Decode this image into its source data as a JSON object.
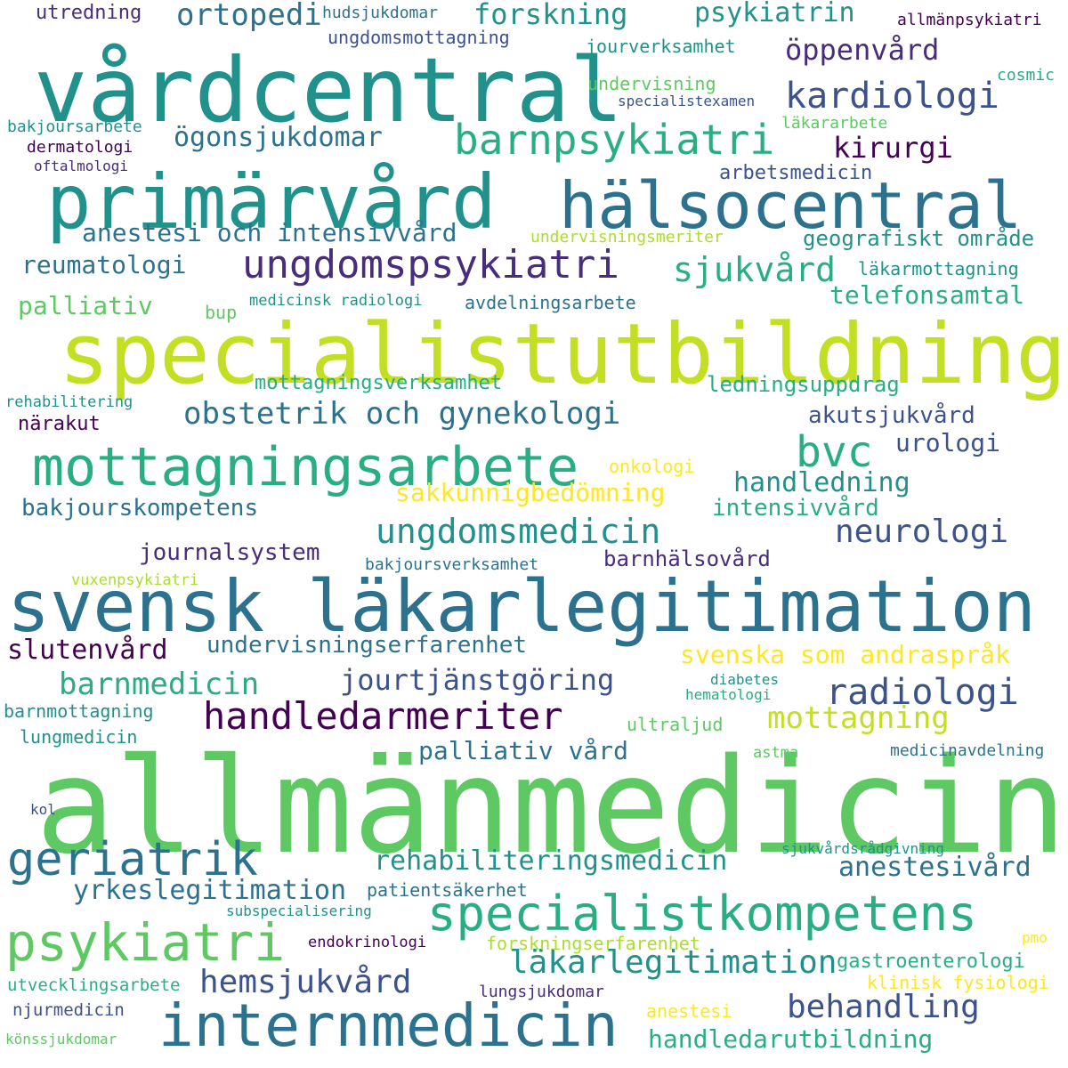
{
  "colors": {
    "background": "#ffffff",
    "palette": [
      "#440154",
      "#472d7b",
      "#3b528b",
      "#2c728e",
      "#21918c",
      "#28ae80",
      "#5ec962",
      "#addc30",
      "#fde725"
    ]
  },
  "words": [
    {
      "text": "allmänmedicin",
      "color": "#5ec962"
    },
    {
      "text": "specialistutbildning",
      "color": "#c2df23"
    },
    {
      "text": "svensk läkarlegitimation",
      "color": "#2c728e"
    },
    {
      "text": "vårdcentral",
      "color": "#21918c"
    },
    {
      "text": "primärvård",
      "color": "#21918c"
    },
    {
      "text": "hälsocentral",
      "color": "#2c728e"
    },
    {
      "text": "mottagningsarbete",
      "color": "#28ae80"
    },
    {
      "text": "specialistkompetens",
      "color": "#28ae80"
    },
    {
      "text": "internmedicin",
      "color": "#2c728e"
    },
    {
      "text": "psykiatri",
      "color": "#5ec962"
    },
    {
      "text": "geriatrik",
      "color": "#2c728e"
    },
    {
      "text": "barnpsykiatri",
      "color": "#28ae80"
    },
    {
      "text": "ungdomspsykiatri",
      "color": "#472d7b"
    },
    {
      "text": "handledarmeriter",
      "color": "#440154"
    },
    {
      "text": "bvc",
      "color": "#28ae80"
    },
    {
      "text": "kardiologi",
      "color": "#3b528b"
    },
    {
      "text": "radiologi",
      "color": "#3b528b"
    },
    {
      "text": "neurologi",
      "color": "#3b528b"
    },
    {
      "text": "ungdomsmedicin",
      "color": "#21918c"
    },
    {
      "text": "barnmedicin",
      "color": "#28ae80"
    },
    {
      "text": "behandling",
      "color": "#3b528b"
    },
    {
      "text": "mottagning",
      "color": "#c2df23"
    },
    {
      "text": "läkarlegitimation",
      "color": "#21918c"
    },
    {
      "text": "sjukvård",
      "color": "#28ae80"
    },
    {
      "text": "hemsjukvård",
      "color": "#3b528b"
    },
    {
      "text": "obstetrik och gynekologi",
      "color": "#2c728e"
    },
    {
      "text": "rehabiliteringsmedicin",
      "color": "#21918c"
    },
    {
      "text": "yrkeslegitimation",
      "color": "#2c728e"
    },
    {
      "text": "jourtjänstgöring",
      "color": "#3b528b"
    },
    {
      "text": "slutenvård",
      "color": "#440154"
    },
    {
      "text": "ortopedi",
      "color": "#2c728e"
    },
    {
      "text": "forskning",
      "color": "#21918c"
    },
    {
      "text": "psykiatrin",
      "color": "#21918c"
    },
    {
      "text": "öppenvård",
      "color": "#472d7b"
    },
    {
      "text": "kirurgi",
      "color": "#440154"
    },
    {
      "text": "handledning",
      "color": "#21918c"
    },
    {
      "text": "anestesivård",
      "color": "#2c728e"
    },
    {
      "text": "handledarutbildning",
      "color": "#28ae80"
    },
    {
      "text": "ögonsjukdomar",
      "color": "#2c728e"
    },
    {
      "text": "anestesi och intensivvård",
      "color": "#2c728e"
    },
    {
      "text": "svenska som andraspråk",
      "color": "#fde725"
    },
    {
      "text": "sakkunnigbedömning",
      "color": "#fde725"
    },
    {
      "text": "palliativ vård",
      "color": "#2c728e"
    },
    {
      "text": "undervisningserfarenhet",
      "color": "#2c728e"
    },
    {
      "text": "reumatologi",
      "color": "#2c728e"
    },
    {
      "text": "palliativ",
      "color": "#5ec962"
    },
    {
      "text": "telefonsamtal",
      "color": "#28ae80"
    },
    {
      "text": "bakjourskompetens",
      "color": "#2c728e"
    },
    {
      "text": "journalsystem",
      "color": "#472d7b"
    },
    {
      "text": "akutsjukvård",
      "color": "#3b528b"
    },
    {
      "text": "urologi",
      "color": "#3b528b"
    },
    {
      "text": "intensivvård",
      "color": "#28ae80"
    },
    {
      "text": "barnhälsovård",
      "color": "#472d7b"
    },
    {
      "text": "ledningsuppdrag",
      "color": "#28ae80"
    },
    {
      "text": "mottagningsverksamhet",
      "color": "#28ae80"
    },
    {
      "text": "geografiskt område",
      "color": "#21918c"
    },
    {
      "text": "läkarmottagning",
      "color": "#21918c"
    },
    {
      "text": "avdelningsarbete",
      "color": "#2c728e"
    },
    {
      "text": "ungdomsmottagning",
      "color": "#3b528b"
    },
    {
      "text": "jourverksamhet",
      "color": "#21918c"
    },
    {
      "text": "undervisning",
      "color": "#5ec962"
    },
    {
      "text": "arbetsmedicin",
      "color": "#3b528b"
    },
    {
      "text": "utredning",
      "color": "#472d7b"
    },
    {
      "text": "hudsjukdomar",
      "color": "#2c728e"
    },
    {
      "text": "allmänpsykiatri",
      "color": "#440154"
    },
    {
      "text": "cosmic",
      "color": "#28ae80"
    },
    {
      "text": "specialistexamen",
      "color": "#3b528b"
    },
    {
      "text": "läkararbete",
      "color": "#5ec962"
    },
    {
      "text": "bakjoursarbete",
      "color": "#21918c"
    },
    {
      "text": "dermatologi",
      "color": "#440154"
    },
    {
      "text": "oftalmologi",
      "color": "#472d7b"
    },
    {
      "text": "undervisningsmeriter",
      "color": "#addc30"
    },
    {
      "text": "medicinsk radiologi",
      "color": "#21918c"
    },
    {
      "text": "bup",
      "color": "#5ec962"
    },
    {
      "text": "rehabilitering",
      "color": "#21918c"
    },
    {
      "text": "närakut",
      "color": "#440154"
    },
    {
      "text": "onkologi",
      "color": "#fde725"
    },
    {
      "text": "bakjoursverksamhet",
      "color": "#2c728e"
    },
    {
      "text": "vuxenpsykiatri",
      "color": "#addc30"
    },
    {
      "text": "barnmottagning",
      "color": "#21918c"
    },
    {
      "text": "lungmedicin",
      "color": "#21918c"
    },
    {
      "text": "ultraljud",
      "color": "#5ec962"
    },
    {
      "text": "diabetes",
      "color": "#21918c"
    },
    {
      "text": "hematologi",
      "color": "#28ae80"
    },
    {
      "text": "astma",
      "color": "#5ec962"
    },
    {
      "text": "medicinavdelning",
      "color": "#2c728e"
    },
    {
      "text": "kol",
      "color": "#3b528b"
    },
    {
      "text": "sjukvårdsrådgivning",
      "color": "#21918c"
    },
    {
      "text": "patientsäkerhet",
      "color": "#2c728e"
    },
    {
      "text": "subspecialisering",
      "color": "#21918c"
    },
    {
      "text": "endokrinologi",
      "color": "#440154"
    },
    {
      "text": "forskningserfarenhet",
      "color": "#addc30"
    },
    {
      "text": "pmo",
      "color": "#fde725"
    },
    {
      "text": "gastroenterologi",
      "color": "#28ae80"
    },
    {
      "text": "klinisk fysiologi",
      "color": "#fde725"
    },
    {
      "text": "utvecklingsarbete",
      "color": "#28ae80"
    },
    {
      "text": "lungsjukdomar",
      "color": "#472d7b"
    },
    {
      "text": "njurmedicin",
      "color": "#3b528b"
    },
    {
      "text": "anestesi",
      "color": "#fde725"
    },
    {
      "text": "könssjukdomar",
      "color": "#5ec962"
    }
  ]
}
